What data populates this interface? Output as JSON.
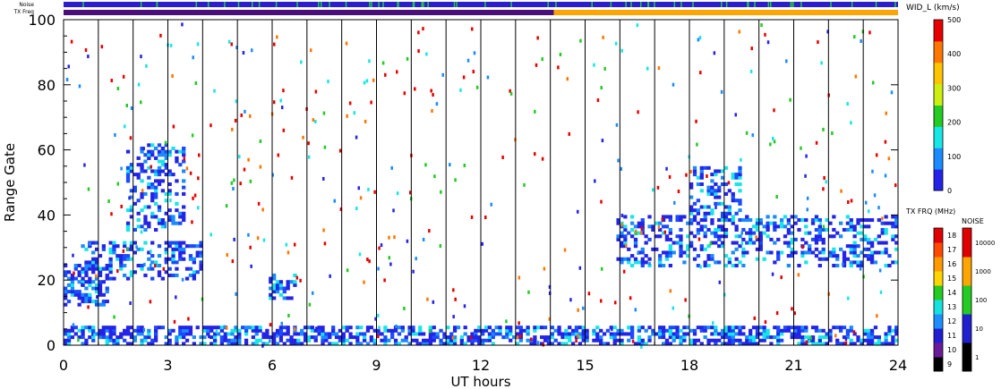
{
  "chart_data": {
    "type": "heatmap",
    "xlabel": "UT hours",
    "ylabel": "Range Gate",
    "xlim": [
      0,
      24
    ],
    "ylim": [
      0,
      100
    ],
    "x_ticks": [
      "0",
      "3",
      "6",
      "9",
      "12",
      "15",
      "18",
      "21",
      "24"
    ],
    "y_ticks": [
      "0",
      "20",
      "40",
      "60",
      "80",
      "100"
    ],
    "scan_lines_ut": [
      1,
      2,
      3,
      4,
      5,
      6,
      7,
      8,
      9,
      10,
      11,
      12,
      13,
      14,
      15,
      16,
      17,
      18,
      19,
      20,
      21,
      22,
      23
    ],
    "top_strips": [
      {
        "label": "Noise",
        "color": "#2a1ecf",
        "accent": "#22cc44"
      },
      {
        "label": "TX Freq",
        "segments": [
          {
            "from": 0,
            "to": 14.1,
            "color": "#4b0f7a"
          },
          {
            "from": 14.1,
            "to": 24,
            "color": "#ffa500"
          }
        ]
      }
    ],
    "main_colorbar": {
      "label": "WID_L (km/s)",
      "ticks": [
        "500",
        "400",
        "300",
        "200",
        "100",
        "0"
      ],
      "range": [
        0,
        500
      ],
      "colors": [
        "#2424e8",
        "#1a8cff",
        "#17e6e6",
        "#22cc22",
        "#ccee11",
        "#ffc400",
        "#ff7700",
        "#e80000"
      ]
    },
    "tx_colorbar": {
      "label": "TX FRQ (MHz)",
      "ticks": [
        "18",
        "17",
        "16",
        "15",
        "14",
        "13",
        "12",
        "11",
        "10",
        "9"
      ],
      "colors": [
        "#000000",
        "#6a1b9a",
        "#2020d0",
        "#1e8fff",
        "#17e0e0",
        "#22cc22",
        "#ffd400",
        "#ff9a00",
        "#ff4a00",
        "#e00000"
      ]
    },
    "noise_colorbar": {
      "label": "NOISE",
      "ticks": [
        "10000",
        "1000",
        "100",
        "10",
        "1"
      ],
      "colors": [
        "#000000",
        "#2020d0",
        "#22cc22",
        "#ffa500",
        "#e00000"
      ]
    },
    "backscatter_bands": [
      {
        "ut_from": 0,
        "ut_to": 1.3,
        "gate_from": 12,
        "gate_to": 25,
        "note": "dense"
      },
      {
        "ut_from": 0.5,
        "ut_to": 4.0,
        "gate_from": 20,
        "gate_to": 32
      },
      {
        "ut_from": 1.8,
        "ut_to": 3.5,
        "gate_from": 35,
        "gate_to": 62
      },
      {
        "ut_from": 5.9,
        "ut_to": 6.6,
        "gate_from": 14,
        "gate_to": 22
      },
      {
        "ut_from": 15.9,
        "ut_to": 24,
        "gate_from": 24,
        "gate_to": 40
      },
      {
        "ut_from": 18,
        "ut_to": 19.5,
        "gate_from": 38,
        "gate_to": 55
      },
      {
        "ut_from": 0,
        "ut_to": 24,
        "gate_from": 0,
        "gate_to": 6,
        "note": "ground scatter"
      }
    ]
  }
}
